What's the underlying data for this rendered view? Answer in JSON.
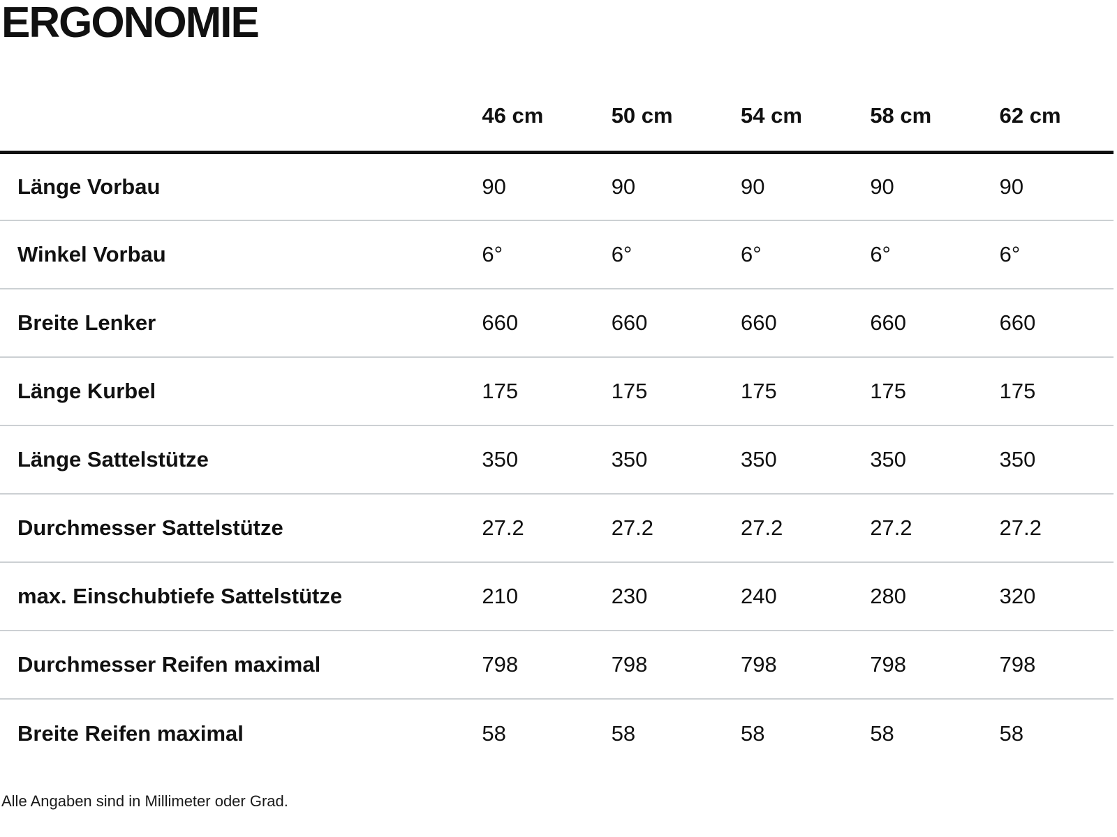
{
  "title": "ERGONOMIE",
  "colors": {
    "text": "#111111",
    "header_rule": "#111111",
    "row_divider": "#ccd0d3",
    "footnote_color": "#1a1a1a"
  },
  "table": {
    "columns": [
      "46 cm",
      "50 cm",
      "54 cm",
      "58 cm",
      "62 cm"
    ],
    "rows": [
      {
        "label": "Länge Vorbau",
        "values": [
          "90",
          "90",
          "90",
          "90",
          "90"
        ]
      },
      {
        "label": "Winkel Vorbau",
        "values": [
          "6°",
          "6°",
          "6°",
          "6°",
          "6°"
        ]
      },
      {
        "label": "Breite Lenker",
        "values": [
          "660",
          "660",
          "660",
          "660",
          "660"
        ]
      },
      {
        "label": "Länge Kurbel",
        "values": [
          "175",
          "175",
          "175",
          "175",
          "175"
        ]
      },
      {
        "label": "Länge Sattelstütze",
        "values": [
          "350",
          "350",
          "350",
          "350",
          "350"
        ]
      },
      {
        "label": "Durchmesser Sattelstütze",
        "values": [
          "27.2",
          "27.2",
          "27.2",
          "27.2",
          "27.2"
        ]
      },
      {
        "label": "max. Einschubtiefe Sattelstütze",
        "values": [
          "210",
          "230",
          "240",
          "280",
          "320"
        ]
      },
      {
        "label": "Durchmesser Reifen maximal",
        "values": [
          "798",
          "798",
          "798",
          "798",
          "798"
        ]
      },
      {
        "label": "Breite Reifen maximal",
        "values": [
          "58",
          "58",
          "58",
          "58",
          "58"
        ]
      }
    ]
  },
  "footnote": "Alle Angaben sind in Millimeter oder Grad."
}
